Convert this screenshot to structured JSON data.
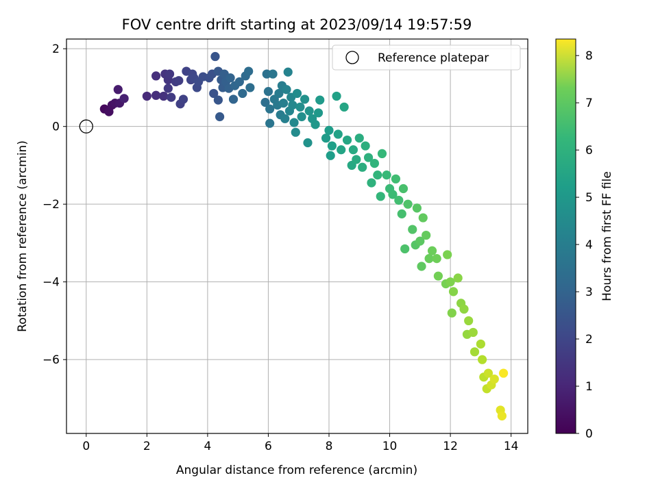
{
  "chart_data": {
    "type": "scatter",
    "title": "FOV centre drift starting at 2023/09/14 19:57:59",
    "xlabel": "Angular distance from reference (arcmin)",
    "ylabel": "Rotation from reference (arcmin)",
    "xlim": [
      -0.65,
      14.55
    ],
    "ylim": [
      -7.9,
      2.25
    ],
    "xticks": [
      0,
      2,
      4,
      6,
      8,
      10,
      12,
      14
    ],
    "xtick_labels": [
      "0",
      "2",
      "4",
      "6",
      "8",
      "10",
      "12",
      "14"
    ],
    "yticks": [
      2,
      0,
      -2,
      -4,
      -6
    ],
    "ytick_labels": [
      "2",
      "0",
      "−2",
      "−4",
      "−6"
    ],
    "grid": true,
    "legend": {
      "location": "top-right",
      "entries": [
        {
          "label": "Reference platepar",
          "marker": "open-circle"
        }
      ]
    },
    "reference_point": {
      "x": 0,
      "y": 0,
      "label": "Reference platepar"
    },
    "colorbar": {
      "label": "Hours from first FF file",
      "range": [
        0,
        8.35
      ],
      "ticks": [
        0,
        1,
        2,
        3,
        4,
        5,
        6,
        7,
        8
      ],
      "tick_labels": [
        "0",
        "1",
        "2",
        "3",
        "4",
        "5",
        "6",
        "7",
        "8"
      ],
      "colormap": "viridis"
    },
    "series": [
      {
        "points": [
          [
            0.6,
            0.45,
            0.2
          ],
          [
            0.75,
            0.38,
            0.3
          ],
          [
            0.85,
            0.55,
            0.35
          ],
          [
            0.95,
            0.6,
            0.45
          ],
          [
            1.1,
            0.6,
            0.55
          ],
          [
            1.05,
            0.95,
            0.65
          ],
          [
            1.25,
            0.72,
            0.75
          ],
          [
            2.0,
            0.78,
            1.0
          ],
          [
            2.3,
            0.8,
            1.1
          ],
          [
            2.3,
            1.3,
            1.15
          ],
          [
            2.55,
            0.78,
            1.2
          ],
          [
            2.6,
            1.35,
            1.25
          ],
          [
            2.7,
            1.2,
            1.3
          ],
          [
            2.75,
            1.35,
            1.35
          ],
          [
            2.7,
            0.98,
            1.4
          ],
          [
            2.8,
            0.75,
            1.45
          ],
          [
            2.95,
            1.15,
            1.5
          ],
          [
            3.05,
            1.18,
            1.55
          ],
          [
            3.1,
            0.58,
            1.6
          ],
          [
            3.2,
            0.7,
            1.65
          ],
          [
            3.3,
            1.42,
            1.7
          ],
          [
            3.45,
            1.2,
            1.75
          ],
          [
            3.5,
            1.35,
            1.8
          ],
          [
            3.55,
            1.25,
            1.85
          ],
          [
            3.65,
            1.0,
            1.9
          ],
          [
            3.7,
            1.15,
            1.95
          ],
          [
            3.85,
            1.28,
            2.0
          ],
          [
            4.05,
            1.25,
            2.05
          ],
          [
            4.15,
            1.35,
            2.1
          ],
          [
            4.2,
            0.85,
            2.15
          ],
          [
            4.25,
            1.8,
            2.2
          ],
          [
            4.35,
            0.68,
            2.25
          ],
          [
            4.35,
            1.42,
            2.3
          ],
          [
            4.4,
            0.25,
            2.35
          ],
          [
            4.45,
            1.2,
            2.4
          ],
          [
            4.5,
            1.0,
            2.45
          ],
          [
            4.55,
            1.35,
            2.5
          ],
          [
            4.6,
            1.15,
            2.55
          ],
          [
            4.7,
            0.98,
            2.6
          ],
          [
            4.75,
            1.25,
            2.65
          ],
          [
            4.85,
            0.7,
            2.7
          ],
          [
            4.9,
            1.05,
            2.75
          ],
          [
            5.05,
            1.15,
            2.8
          ],
          [
            5.15,
            0.85,
            2.85
          ],
          [
            5.25,
            1.3,
            2.9
          ],
          [
            5.35,
            1.42,
            2.95
          ],
          [
            5.4,
            1.0,
            3.0
          ],
          [
            5.9,
            0.62,
            3.05
          ],
          [
            5.95,
            1.35,
            3.1
          ],
          [
            6.0,
            0.9,
            3.15
          ],
          [
            6.05,
            0.45,
            3.2
          ],
          [
            6.05,
            0.08,
            3.25
          ],
          [
            6.15,
            1.35,
            3.3
          ],
          [
            6.2,
            0.7,
            3.35
          ],
          [
            6.3,
            0.55,
            3.4
          ],
          [
            6.35,
            0.85,
            3.45
          ],
          [
            6.4,
            0.3,
            3.5
          ],
          [
            6.45,
            1.05,
            3.55
          ],
          [
            6.5,
            0.6,
            3.6
          ],
          [
            6.55,
            0.2,
            3.65
          ],
          [
            6.6,
            0.95,
            3.7
          ],
          [
            6.65,
            1.4,
            3.75
          ],
          [
            6.7,
            0.4,
            3.8
          ],
          [
            6.75,
            0.75,
            3.85
          ],
          [
            6.8,
            0.55,
            3.9
          ],
          [
            6.85,
            0.1,
            3.95
          ],
          [
            6.9,
            -0.15,
            4.0
          ],
          [
            6.95,
            0.85,
            4.05
          ],
          [
            7.05,
            0.5,
            4.1
          ],
          [
            7.1,
            0.25,
            4.15
          ],
          [
            7.2,
            0.7,
            4.2
          ],
          [
            7.3,
            -0.42,
            4.25
          ],
          [
            7.35,
            0.4,
            4.3
          ],
          [
            7.45,
            0.2,
            4.35
          ],
          [
            7.55,
            0.05,
            4.4
          ],
          [
            7.65,
            0.35,
            4.45
          ],
          [
            7.7,
            0.68,
            4.5
          ],
          [
            7.9,
            -0.3,
            4.55
          ],
          [
            8.0,
            -0.1,
            4.6
          ],
          [
            8.05,
            -0.75,
            4.65
          ],
          [
            8.1,
            -0.5,
            4.7
          ],
          [
            8.25,
            0.78,
            4.75
          ],
          [
            8.3,
            -0.2,
            4.8
          ],
          [
            8.4,
            -0.6,
            4.85
          ],
          [
            8.5,
            0.5,
            4.9
          ],
          [
            8.6,
            -0.35,
            4.95
          ],
          [
            8.75,
            -1.0,
            5.0
          ],
          [
            8.8,
            -0.6,
            5.05
          ],
          [
            8.9,
            -0.85,
            5.1
          ],
          [
            9.0,
            -0.3,
            5.15
          ],
          [
            9.1,
            -1.05,
            5.2
          ],
          [
            9.2,
            -0.5,
            5.25
          ],
          [
            9.3,
            -0.8,
            5.3
          ],
          [
            9.4,
            -1.45,
            5.35
          ],
          [
            9.5,
            -0.95,
            5.4
          ],
          [
            9.6,
            -1.25,
            5.45
          ],
          [
            9.7,
            -1.8,
            5.5
          ],
          [
            9.75,
            -0.7,
            5.55
          ],
          [
            9.9,
            -1.25,
            5.6
          ],
          [
            10.0,
            -1.6,
            5.65
          ],
          [
            10.1,
            -1.75,
            5.7
          ],
          [
            10.2,
            -1.35,
            5.75
          ],
          [
            10.3,
            -1.9,
            5.8
          ],
          [
            10.4,
            -2.25,
            5.85
          ],
          [
            10.45,
            -1.6,
            5.9
          ],
          [
            10.5,
            -3.15,
            5.95
          ],
          [
            10.6,
            -2.0,
            6.0
          ],
          [
            10.75,
            -2.65,
            6.05
          ],
          [
            10.85,
            -3.05,
            6.1
          ],
          [
            10.9,
            -2.1,
            6.15
          ],
          [
            11.0,
            -2.95,
            6.2
          ],
          [
            11.05,
            -3.6,
            6.25
          ],
          [
            11.1,
            -2.35,
            6.3
          ],
          [
            11.2,
            -2.8,
            6.35
          ],
          [
            11.3,
            -3.4,
            6.4
          ],
          [
            11.4,
            -3.2,
            6.45
          ],
          [
            11.55,
            -3.4,
            6.5
          ],
          [
            11.6,
            -3.85,
            6.55
          ],
          [
            11.85,
            -4.05,
            6.6
          ],
          [
            11.9,
            -3.3,
            6.65
          ],
          [
            12.0,
            -4.0,
            6.7
          ],
          [
            12.05,
            -4.8,
            6.75
          ],
          [
            12.1,
            -4.25,
            6.8
          ],
          [
            12.25,
            -3.9,
            6.85
          ],
          [
            12.35,
            -4.55,
            6.9
          ],
          [
            12.45,
            -4.7,
            6.95
          ],
          [
            12.55,
            -5.35,
            7.0
          ],
          [
            12.6,
            -5.0,
            7.05
          ],
          [
            12.75,
            -5.3,
            7.1
          ],
          [
            12.8,
            -5.8,
            7.2
          ],
          [
            13.0,
            -5.6,
            7.3
          ],
          [
            13.05,
            -6.0,
            7.4
          ],
          [
            13.1,
            -6.45,
            7.5
          ],
          [
            13.2,
            -6.75,
            7.6
          ],
          [
            13.25,
            -6.35,
            7.7
          ],
          [
            13.35,
            -6.65,
            7.8
          ],
          [
            13.45,
            -6.5,
            7.9
          ],
          [
            13.65,
            -7.3,
            8.0
          ],
          [
            13.7,
            -7.45,
            8.1
          ],
          [
            13.75,
            -6.35,
            8.3
          ]
        ]
      }
    ]
  }
}
